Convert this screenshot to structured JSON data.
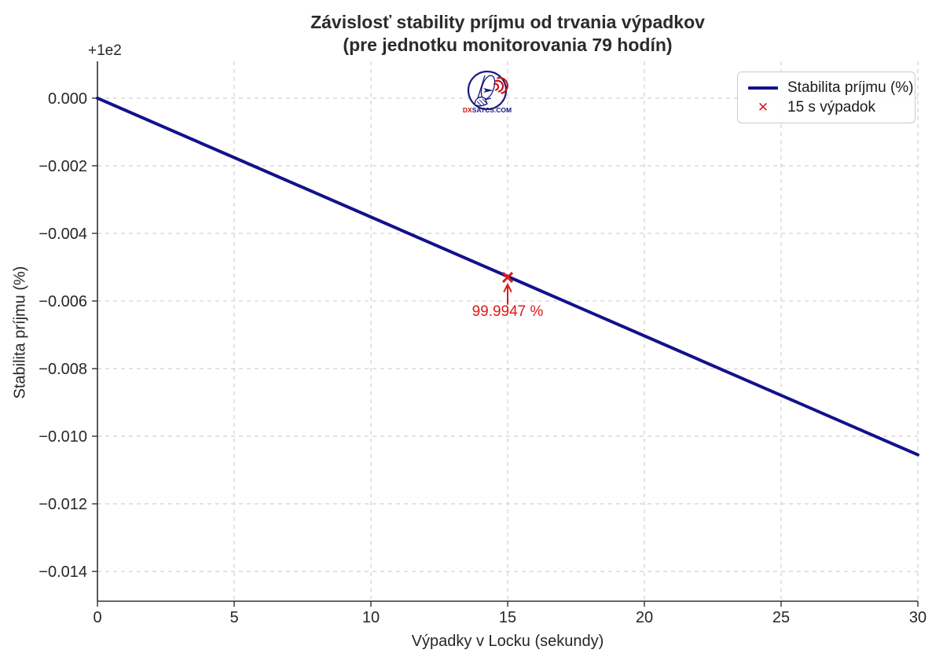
{
  "chart_data": {
    "type": "line",
    "title": "Závislosť stability príjmu od trvania výpadkov\n(pre jednotku monitorovania 79 hodín)",
    "xlabel": "Výpadky v Locku (sekundy)",
    "ylabel": "Stabilita príjmu (%)",
    "y_offset_text": "+1e2",
    "xlim": [
      0,
      30
    ],
    "ylim": [
      99.98512,
      100.00109
    ],
    "grid": true,
    "legend_position": "upper right",
    "x_ticks": [
      0,
      5,
      10,
      15,
      20,
      25,
      30
    ],
    "x_tick_labels": [
      "0",
      "5",
      "10",
      "15",
      "20",
      "25",
      "30"
    ],
    "y_ticks": [
      100.0,
      99.998,
      99.996,
      99.994,
      99.992,
      99.99,
      99.988,
      99.986
    ],
    "y_tick_labels": [
      "0.000",
      "−0.002",
      "−0.004",
      "−0.006",
      "−0.008",
      "−0.010",
      "−0.012",
      "−0.014"
    ],
    "series": [
      {
        "name": "Stabilita príjmu (%)",
        "color": "#12128a",
        "x": [
          0,
          5,
          10,
          15,
          20,
          25,
          30
        ],
        "y": [
          100.0,
          99.998242,
          99.996484,
          99.994726,
          99.992968,
          99.991209,
          99.989451
        ]
      }
    ],
    "marker": {
      "name": "15 s výpadok",
      "x": 15,
      "y": 99.9947,
      "color": "#e01919"
    },
    "annotation": {
      "label": "99.9947 %",
      "color": "#e01919"
    }
  },
  "legend": {
    "items": [
      {
        "label": "Stabilita príjmu (%)",
        "swatch": "line"
      },
      {
        "label": "15 s výpadok",
        "swatch": "x"
      }
    ],
    "x_glyph": "✕"
  },
  "logo": {
    "prefix": "DX",
    "suffix": "SATCS.COM"
  },
  "colors": {
    "line": "#12128a",
    "marker_red": "#e01919",
    "grid": "#cccccc",
    "axis": "#333333",
    "text": "#262626",
    "logo_navy": "#1a1a7e",
    "logo_red": "#cc1111"
  }
}
